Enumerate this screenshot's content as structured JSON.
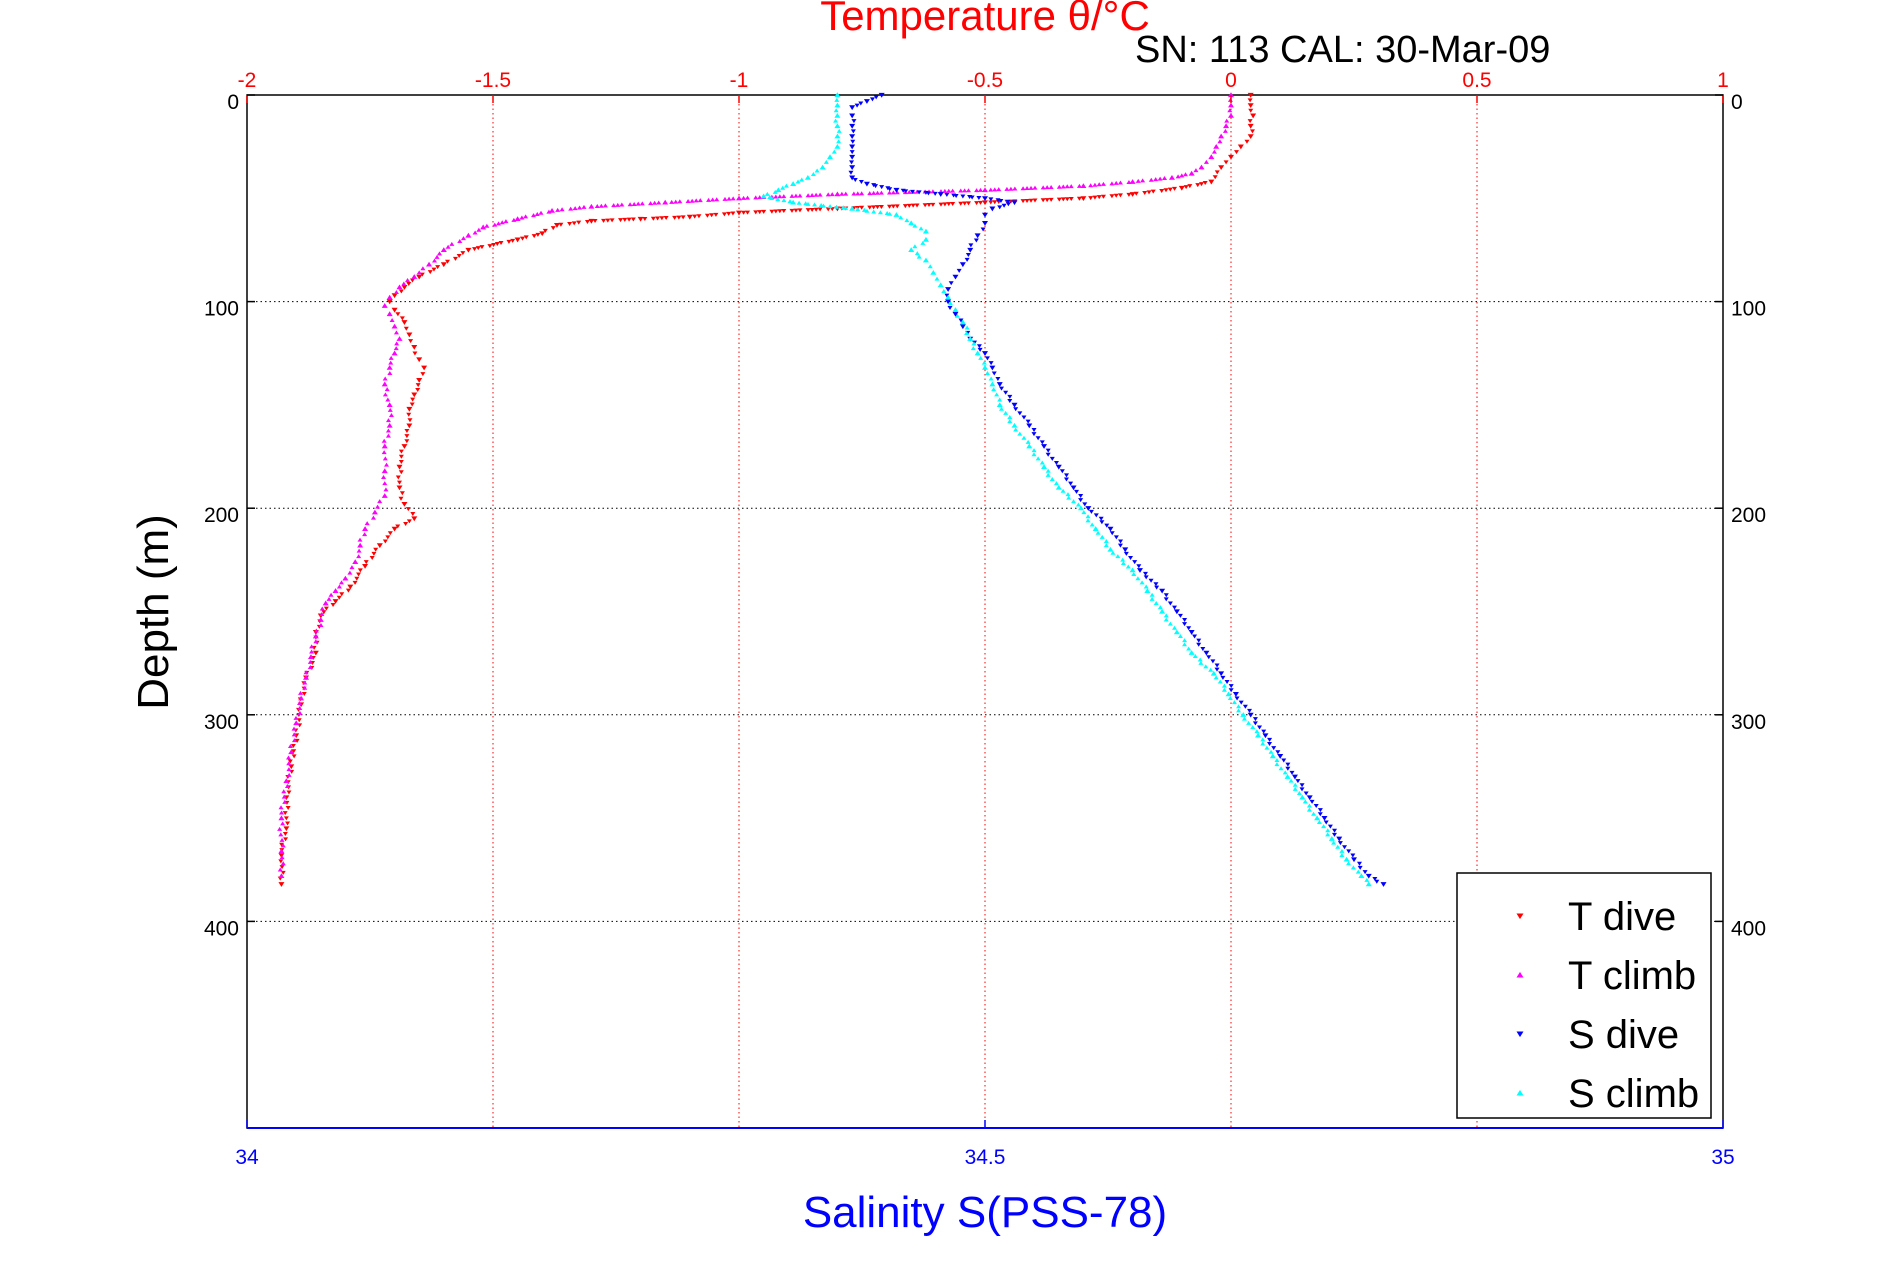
{
  "chart_data": {
    "type": "scatter",
    "title": "Temperature θ/°C",
    "subtitle": "SN: 113  CAL: 30-Mar-09",
    "ylabel": "Depth (m)",
    "xlabel_bottom": "Salinity S(PSS-78)",
    "xlabel_top": "Temperature θ/°C",
    "ylim": [
      0,
      500
    ],
    "y_reversed": true,
    "y_ticks": [
      0,
      100,
      200,
      300,
      400
    ],
    "y_tick_labels": [
      "0",
      "100",
      "200",
      "300",
      "400"
    ],
    "x_bottom_lim": [
      34,
      35
    ],
    "x_bottom_ticks": [
      34,
      34.5,
      35
    ],
    "x_bottom_tick_labels": [
      "34",
      "34.5",
      "35"
    ],
    "x_top_lim": [
      -2,
      1
    ],
    "x_top_ticks": [
      -2,
      -1.5,
      -1,
      -0.5,
      0,
      0.5,
      1
    ],
    "x_top_tick_labels": [
      "-2",
      "-1.5",
      "-1",
      "-0.5",
      "0",
      "0.5",
      "1"
    ],
    "grid": true,
    "legend_position": "bottom-right",
    "colors": {
      "temperature_axis": "#ff0000",
      "salinity_axis": "#0000ff",
      "t_dive": "#ff0000",
      "t_climb": "#ff00ff",
      "s_dive": "#0000ff",
      "s_climb": "#00ffff"
    },
    "series": [
      {
        "name": "T dive",
        "axis": "temperature",
        "marker": "triangle-down",
        "color": "#ff0000",
        "points": [
          [
            0.04,
            0
          ],
          [
            0.04,
            5
          ],
          [
            0.045,
            10
          ],
          [
            0.04,
            15
          ],
          [
            0.04,
            20
          ],
          [
            0.02,
            25
          ],
          [
            0.0,
            30
          ],
          [
            -0.02,
            35
          ],
          [
            -0.04,
            42
          ],
          [
            -0.1,
            45
          ],
          [
            -0.2,
            48
          ],
          [
            -0.3,
            50
          ],
          [
            -0.5,
            52
          ],
          [
            -0.8,
            55
          ],
          [
            -1.0,
            57
          ],
          [
            -1.1,
            59
          ],
          [
            -1.2,
            60
          ],
          [
            -1.3,
            61
          ],
          [
            -1.37,
            63
          ],
          [
            -1.4,
            67
          ],
          [
            -1.45,
            70
          ],
          [
            -1.55,
            75
          ],
          [
            -1.6,
            82
          ],
          [
            -1.65,
            88
          ],
          [
            -1.68,
            93
          ],
          [
            -1.7,
            97
          ],
          [
            -1.71,
            100
          ],
          [
            -1.7,
            104
          ],
          [
            -1.68,
            110
          ],
          [
            -1.67,
            116
          ],
          [
            -1.66,
            122
          ],
          [
            -1.65,
            128
          ],
          [
            -1.64,
            132
          ],
          [
            -1.65,
            138
          ],
          [
            -1.66,
            145
          ],
          [
            -1.67,
            152
          ],
          [
            -1.67,
            160
          ],
          [
            -1.68,
            170
          ],
          [
            -1.69,
            180
          ],
          [
            -1.69,
            190
          ],
          [
            -1.68,
            198
          ],
          [
            -1.66,
            205
          ],
          [
            -1.7,
            210
          ],
          [
            -1.73,
            218
          ],
          [
            -1.76,
            228
          ],
          [
            -1.79,
            238
          ],
          [
            -1.82,
            245
          ],
          [
            -1.85,
            252
          ],
          [
            -1.86,
            260
          ],
          [
            -1.86,
            270
          ],
          [
            -1.88,
            282
          ],
          [
            -1.89,
            295
          ],
          [
            -1.9,
            310
          ],
          [
            -1.91,
            325
          ],
          [
            -1.92,
            340
          ],
          [
            -1.92,
            355
          ],
          [
            -1.93,
            368
          ],
          [
            -1.93,
            382
          ]
        ]
      },
      {
        "name": "T climb",
        "axis": "temperature",
        "marker": "triangle-up",
        "color": "#ff00ff",
        "points": [
          [
            0.0,
            0
          ],
          [
            0.0,
            5
          ],
          [
            0.0,
            10
          ],
          [
            -0.01,
            15
          ],
          [
            -0.02,
            20
          ],
          [
            -0.03,
            25
          ],
          [
            -0.04,
            30
          ],
          [
            -0.06,
            35
          ],
          [
            -0.08,
            38
          ],
          [
            -0.12,
            40
          ],
          [
            -0.2,
            42
          ],
          [
            -0.3,
            44
          ],
          [
            -0.5,
            46
          ],
          [
            -0.8,
            48
          ],
          [
            -1.0,
            50
          ],
          [
            -1.15,
            52
          ],
          [
            -1.3,
            54
          ],
          [
            -1.38,
            56
          ],
          [
            -1.45,
            60
          ],
          [
            -1.52,
            64
          ],
          [
            -1.55,
            68
          ],
          [
            -1.6,
            75
          ],
          [
            -1.63,
            82
          ],
          [
            -1.66,
            88
          ],
          [
            -1.69,
            93
          ],
          [
            -1.71,
            98
          ],
          [
            -1.72,
            102
          ],
          [
            -1.71,
            106
          ],
          [
            -1.7,
            112
          ],
          [
            -1.69,
            118
          ],
          [
            -1.7,
            125
          ],
          [
            -1.71,
            132
          ],
          [
            -1.72,
            140
          ],
          [
            -1.71,
            150
          ],
          [
            -1.71,
            160
          ],
          [
            -1.72,
            170
          ],
          [
            -1.72,
            182
          ],
          [
            -1.72,
            194
          ],
          [
            -1.74,
            202
          ],
          [
            -1.76,
            210
          ],
          [
            -1.77,
            218
          ],
          [
            -1.78,
            226
          ],
          [
            -1.8,
            234
          ],
          [
            -1.82,
            240
          ],
          [
            -1.84,
            246
          ],
          [
            -1.85,
            254
          ],
          [
            -1.86,
            262
          ],
          [
            -1.87,
            272
          ],
          [
            -1.88,
            282
          ],
          [
            -1.89,
            292
          ],
          [
            -1.9,
            304
          ],
          [
            -1.91,
            318
          ],
          [
            -1.92,
            332
          ],
          [
            -1.93,
            350
          ],
          [
            -1.93,
            366
          ],
          [
            -1.93,
            378
          ]
        ]
      },
      {
        "name": "S dive",
        "axis": "salinity",
        "marker": "triangle-down",
        "color": "#0000ff",
        "points": [
          [
            34.43,
            0
          ],
          [
            34.42,
            3
          ],
          [
            34.41,
            6
          ],
          [
            34.41,
            10
          ],
          [
            34.41,
            15
          ],
          [
            34.41,
            20
          ],
          [
            34.41,
            25
          ],
          [
            34.41,
            30
          ],
          [
            34.41,
            35
          ],
          [
            34.41,
            40
          ],
          [
            34.42,
            43
          ],
          [
            34.44,
            46
          ],
          [
            34.47,
            48
          ],
          [
            34.5,
            50
          ],
          [
            34.52,
            52
          ],
          [
            34.505,
            55
          ],
          [
            34.5,
            58
          ],
          [
            34.5,
            62
          ],
          [
            34.495,
            68
          ],
          [
            34.49,
            75
          ],
          [
            34.485,
            82
          ],
          [
            34.48,
            88
          ],
          [
            34.475,
            94
          ],
          [
            34.475,
            100
          ],
          [
            34.48,
            106
          ],
          [
            34.485,
            112
          ],
          [
            34.49,
            118
          ],
          [
            34.5,
            125
          ],
          [
            34.505,
            132
          ],
          [
            34.51,
            140
          ],
          [
            34.52,
            150
          ],
          [
            34.53,
            160
          ],
          [
            34.54,
            170
          ],
          [
            34.55,
            180
          ],
          [
            34.56,
            190
          ],
          [
            34.57,
            200
          ],
          [
            34.585,
            210
          ],
          [
            34.595,
            220
          ],
          [
            34.605,
            230
          ],
          [
            34.62,
            240
          ],
          [
            34.63,
            250
          ],
          [
            34.64,
            260
          ],
          [
            34.65,
            270
          ],
          [
            34.66,
            280
          ],
          [
            34.67,
            290
          ],
          [
            34.68,
            300
          ],
          [
            34.69,
            310
          ],
          [
            34.7,
            320
          ],
          [
            34.71,
            330
          ],
          [
            34.72,
            340
          ],
          [
            34.73,
            350
          ],
          [
            34.74,
            360
          ],
          [
            34.75,
            370
          ],
          [
            34.76,
            378
          ],
          [
            34.77,
            382
          ]
        ]
      },
      {
        "name": "S climb",
        "axis": "salinity",
        "marker": "triangle-up",
        "color": "#00ffff",
        "points": [
          [
            34.4,
            0
          ],
          [
            34.4,
            5
          ],
          [
            34.4,
            10
          ],
          [
            34.4,
            15
          ],
          [
            34.4,
            20
          ],
          [
            34.4,
            25
          ],
          [
            34.395,
            30
          ],
          [
            34.39,
            35
          ],
          [
            34.38,
            40
          ],
          [
            34.37,
            43
          ],
          [
            34.36,
            46
          ],
          [
            34.35,
            49
          ],
          [
            34.37,
            52
          ],
          [
            34.41,
            55
          ],
          [
            34.44,
            58
          ],
          [
            34.45,
            62
          ],
          [
            34.46,
            66
          ],
          [
            34.46,
            70
          ],
          [
            34.45,
            75
          ],
          [
            34.46,
            80
          ],
          [
            34.465,
            86
          ],
          [
            34.47,
            92
          ],
          [
            34.475,
            98
          ],
          [
            34.48,
            104
          ],
          [
            34.485,
            110
          ],
          [
            34.49,
            118
          ],
          [
            34.495,
            125
          ],
          [
            34.5,
            132
          ],
          [
            34.505,
            140
          ],
          [
            34.51,
            150
          ],
          [
            34.52,
            160
          ],
          [
            34.53,
            170
          ],
          [
            34.54,
            180
          ],
          [
            34.55,
            190
          ],
          [
            34.565,
            200
          ],
          [
            34.575,
            210
          ],
          [
            34.585,
            220
          ],
          [
            34.6,
            230
          ],
          [
            34.61,
            240
          ],
          [
            34.62,
            250
          ],
          [
            34.63,
            260
          ],
          [
            34.64,
            270
          ],
          [
            34.655,
            280
          ],
          [
            34.665,
            290
          ],
          [
            34.675,
            300
          ],
          [
            34.685,
            310
          ],
          [
            34.695,
            320
          ],
          [
            34.705,
            330
          ],
          [
            34.715,
            340
          ],
          [
            34.725,
            350
          ],
          [
            34.735,
            360
          ],
          [
            34.745,
            370
          ],
          [
            34.755,
            378
          ],
          [
            34.76,
            382
          ]
        ]
      }
    ],
    "legend": [
      {
        "label": "T dive",
        "marker": "triangle-down",
        "color": "#ff0000"
      },
      {
        "label": "T climb",
        "marker": "triangle-up",
        "color": "#ff00ff"
      },
      {
        "label": "S dive",
        "marker": "triangle-down",
        "color": "#0000ff"
      },
      {
        "label": "S climb",
        "marker": "triangle-up",
        "color": "#00ffff"
      }
    ]
  }
}
